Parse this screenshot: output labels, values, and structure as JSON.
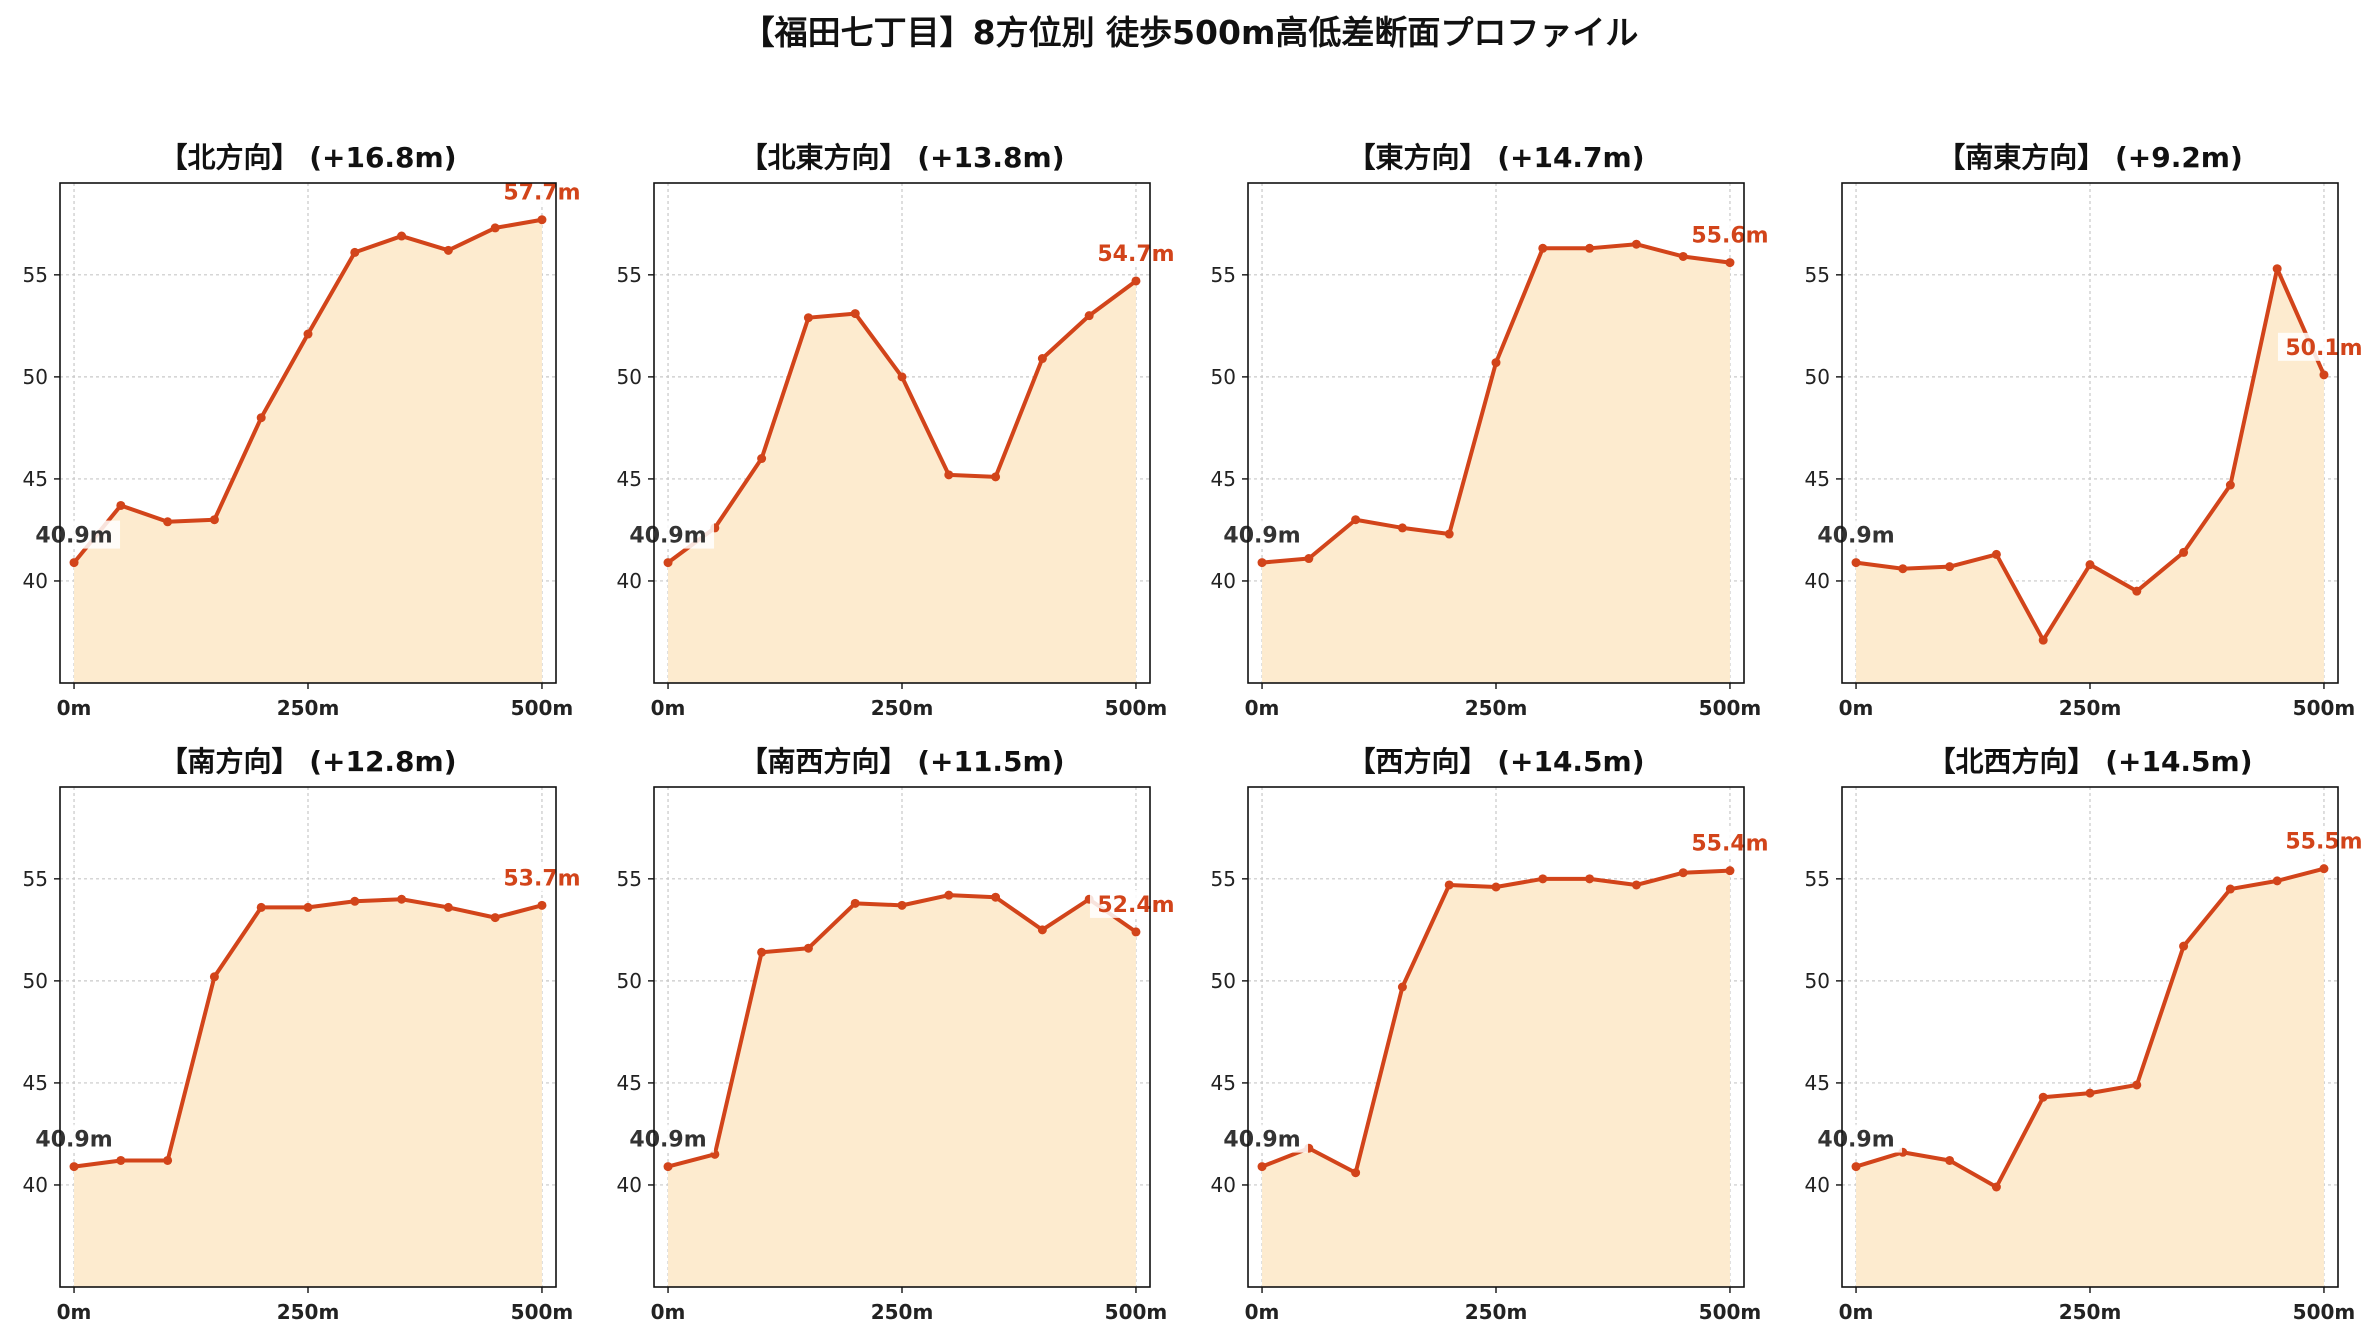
{
  "figure": {
    "title": "【福田七丁目】8方位別 徒歩500m高低差断面プロファイル"
  },
  "colors": {
    "line": "#d2441a",
    "fill": "#fdebcf",
    "start_label": "#333333",
    "end_label": "#d2441a",
    "grid": "#c8c8c8"
  },
  "chart_data": [
    {
      "type": "area",
      "title": "【北方向】 (+16.8m)",
      "x": [
        0,
        50,
        100,
        150,
        200,
        250,
        300,
        350,
        400,
        450,
        500
      ],
      "y": [
        40.9,
        43.7,
        42.9,
        43.0,
        48.0,
        52.1,
        56.1,
        56.9,
        56.2,
        57.3,
        57.7
      ],
      "start_label": "40.9m",
      "end_label": "57.7m",
      "xticks": [
        "0m",
        "250m",
        "500m"
      ],
      "yticks": [
        40,
        45,
        50,
        55
      ],
      "xlim": [
        -15,
        515
      ],
      "ylim": [
        35,
        59.5
      ],
      "grid": true
    },
    {
      "type": "area",
      "title": "【北東方向】 (+13.8m)",
      "x": [
        0,
        50,
        100,
        150,
        200,
        250,
        300,
        350,
        400,
        450,
        500
      ],
      "y": [
        40.9,
        42.6,
        46.0,
        52.9,
        53.1,
        50.0,
        45.2,
        45.1,
        50.9,
        53.0,
        54.7
      ],
      "start_label": "40.9m",
      "end_label": "54.7m",
      "xticks": [
        "0m",
        "250m",
        "500m"
      ],
      "yticks": [
        40,
        45,
        50,
        55
      ],
      "xlim": [
        -15,
        515
      ],
      "ylim": [
        35,
        59.5
      ],
      "grid": true
    },
    {
      "type": "area",
      "title": "【東方向】 (+14.7m)",
      "x": [
        0,
        50,
        100,
        150,
        200,
        250,
        300,
        350,
        400,
        450,
        500
      ],
      "y": [
        40.9,
        41.1,
        43.0,
        42.6,
        42.3,
        50.7,
        56.3,
        56.3,
        56.5,
        55.9,
        55.6
      ],
      "start_label": "40.9m",
      "end_label": "55.6m",
      "xticks": [
        "0m",
        "250m",
        "500m"
      ],
      "yticks": [
        40,
        45,
        50,
        55
      ],
      "xlim": [
        -15,
        515
      ],
      "ylim": [
        35,
        59.5
      ],
      "grid": true
    },
    {
      "type": "area",
      "title": "【南東方向】 (+9.2m)",
      "x": [
        0,
        50,
        100,
        150,
        200,
        250,
        300,
        350,
        400,
        450,
        500
      ],
      "y": [
        40.9,
        40.6,
        40.7,
        41.3,
        37.1,
        40.8,
        39.5,
        41.4,
        44.7,
        55.3,
        50.1
      ],
      "start_label": "40.9m",
      "end_label": "50.1m",
      "xticks": [
        "0m",
        "250m",
        "500m"
      ],
      "yticks": [
        40,
        45,
        50,
        55
      ],
      "xlim": [
        -15,
        515
      ],
      "ylim": [
        35,
        59.5
      ],
      "grid": true
    },
    {
      "type": "area",
      "title": "【南方向】 (+12.8m)",
      "x": [
        0,
        50,
        100,
        150,
        200,
        250,
        300,
        350,
        400,
        450,
        500
      ],
      "y": [
        40.9,
        41.2,
        41.2,
        50.2,
        53.6,
        53.6,
        53.9,
        54.0,
        53.6,
        53.1,
        53.7
      ],
      "start_label": "40.9m",
      "end_label": "53.7m",
      "xticks": [
        "0m",
        "250m",
        "500m"
      ],
      "yticks": [
        40,
        45,
        50,
        55
      ],
      "xlim": [
        -15,
        515
      ],
      "ylim": [
        35,
        59.5
      ],
      "grid": true
    },
    {
      "type": "area",
      "title": "【南西方向】 (+11.5m)",
      "x": [
        0,
        50,
        100,
        150,
        200,
        250,
        300,
        350,
        400,
        450,
        500
      ],
      "y": [
        40.9,
        41.5,
        51.4,
        51.6,
        53.8,
        53.7,
        54.2,
        54.1,
        52.5,
        54.0,
        52.4
      ],
      "start_label": "40.9m",
      "end_label": "52.4m",
      "xticks": [
        "0m",
        "250m",
        "500m"
      ],
      "yticks": [
        40,
        45,
        50,
        55
      ],
      "xlim": [
        -15,
        515
      ],
      "ylim": [
        35,
        59.5
      ],
      "grid": true
    },
    {
      "type": "area",
      "title": "【西方向】 (+14.5m)",
      "x": [
        0,
        50,
        100,
        150,
        200,
        250,
        300,
        350,
        400,
        450,
        500
      ],
      "y": [
        40.9,
        41.8,
        40.6,
        49.7,
        54.7,
        54.6,
        55.0,
        55.0,
        54.7,
        55.3,
        55.4
      ],
      "start_label": "40.9m",
      "end_label": "55.4m",
      "xticks": [
        "0m",
        "250m",
        "500m"
      ],
      "yticks": [
        40,
        45,
        50,
        55
      ],
      "xlim": [
        -15,
        515
      ],
      "ylim": [
        35,
        59.5
      ],
      "grid": true
    },
    {
      "type": "area",
      "title": "【北西方向】 (+14.5m)",
      "x": [
        0,
        50,
        100,
        150,
        200,
        250,
        300,
        350,
        400,
        450,
        500
      ],
      "y": [
        40.9,
        41.6,
        41.2,
        39.9,
        44.3,
        44.5,
        44.9,
        51.7,
        54.5,
        54.9,
        55.5
      ],
      "start_label": "40.9m",
      "end_label": "55.5m",
      "xticks": [
        "0m",
        "250m",
        "500m"
      ],
      "yticks": [
        40,
        45,
        50,
        55
      ],
      "xlim": [
        -15,
        515
      ],
      "ylim": [
        35,
        59.5
      ],
      "grid": true
    }
  ]
}
